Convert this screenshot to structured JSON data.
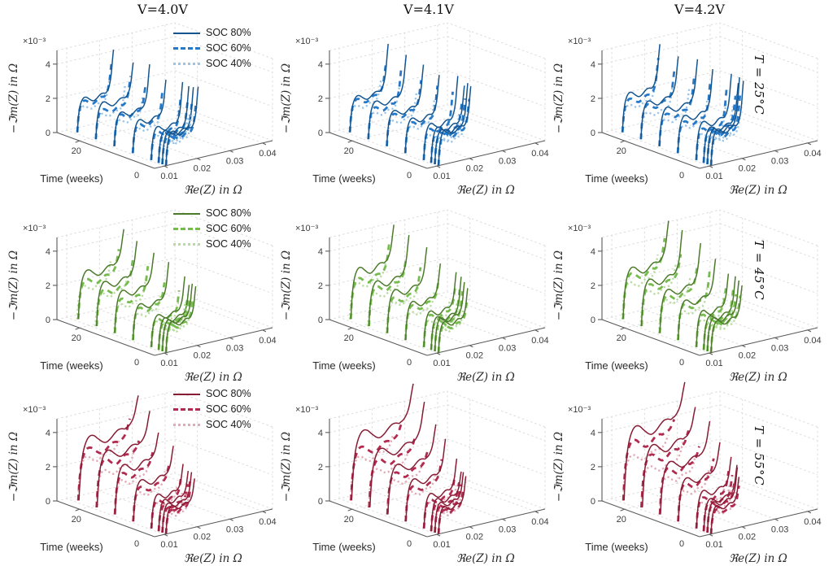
{
  "figure": {
    "background": "#ffffff"
  },
  "chart_data": {
    "type": "line",
    "subtype": "3d_nyquist_spectra_grid",
    "description": "3x3 grid of 3D electrochemical impedance spectra (Nyquist curves) versus aging time. Columns = storage voltage, rows = temperature, three SOC levels per panel.",
    "columns": [
      {
        "title": "V=4.0V",
        "show_legend": true,
        "h_scale": 1.0,
        "w_scale": 1.0
      },
      {
        "title": "V=4.1V",
        "show_legend": false,
        "h_scale": 1.04,
        "w_scale": 1.02
      },
      {
        "title": "V=4.2V",
        "show_legend": false,
        "h_scale": 1.09,
        "w_scale": 1.05
      }
    ],
    "rows": [
      {
        "temp_label": "T = 25°C",
        "colors": {
          "solid": "#14558F",
          "dash": "#2679C8",
          "dot": "#9AC4E8"
        },
        "weeks": [
          0,
          1,
          2,
          4,
          9,
          14,
          19,
          24
        ],
        "series": [
          {
            "label": "SOC 80%",
            "style": "solid",
            "R0": 0.0105,
            "R0k": 2e-05,
            "W0": 0.0095,
            "Wk": 8e-05,
            "h0": 0.00185,
            "hk": 6e-06,
            "tail0": 0.004,
            "tailk": 1e-05
          },
          {
            "label": "SOC 60%",
            "style": "dash",
            "R0": 0.0105,
            "R0k": 2e-05,
            "W0": 0.0088,
            "Wk": 7e-05,
            "h0": 0.00163,
            "hk": 5e-06,
            "tail0": 0.0032,
            "tailk": 1e-05
          },
          {
            "label": "SOC 40%",
            "style": "dot",
            "R0": 0.0104,
            "R0k": 2e-05,
            "W0": 0.0082,
            "Wk": 6e-05,
            "h0": 0.00133,
            "hk": 4e-06,
            "tail0": 0.0025,
            "tailk": 1e-05
          }
        ]
      },
      {
        "temp_label": "T = 45°C",
        "colors": {
          "solid": "#4C7A2B",
          "dash": "#76BB4E",
          "dot": "#B8DCA0"
        },
        "weeks": [
          0,
          1,
          2,
          4,
          9,
          14,
          19,
          24
        ],
        "series": [
          {
            "label": "SOC 80%",
            "style": "solid",
            "R0": 0.0105,
            "R0k": 3e-05,
            "W0": 0.009,
            "Wk": 0.00018,
            "h0": 0.0017,
            "hk": 4e-05,
            "tail0": 0.0034,
            "tailk": 6e-05
          },
          {
            "label": "SOC 60%",
            "style": "dash",
            "R0": 0.0105,
            "R0k": 3e-05,
            "W0": 0.0083,
            "Wk": 0.00015,
            "h0": 0.0015,
            "hk": 3.3e-05,
            "tail0": 0.0028,
            "tailk": 4e-05
          },
          {
            "label": "SOC 40%",
            "style": "dot",
            "R0": 0.0104,
            "R0k": 2e-05,
            "W0": 0.0077,
            "Wk": 0.00012,
            "h0": 0.00125,
            "hk": 2.7e-05,
            "tail0": 0.0022,
            "tailk": 3e-05
          }
        ]
      },
      {
        "temp_label": "T = 55°C",
        "colors": {
          "solid": "#871C34",
          "dash": "#B12A4F",
          "dot": "#E2A9B6"
        },
        "weeks": [
          0,
          1,
          2,
          4,
          9,
          14,
          19,
          24
        ],
        "series": [
          {
            "label": "SOC 80%",
            "style": "solid",
            "R0": 0.0105,
            "R0k": 4e-05,
            "W0": 0.0085,
            "Wk": 0.00038,
            "h0": 0.0015,
            "hk": 9e-05,
            "tail0": 0.0029,
            "tailk": 0.00011
          },
          {
            "label": "SOC 60%",
            "style": "dash",
            "R0": 0.0105,
            "R0k": 3e-05,
            "W0": 0.0078,
            "Wk": 0.0003,
            "h0": 0.0013,
            "hk": 7e-05,
            "tail0": 0.0024,
            "tailk": 6e-05
          },
          {
            "label": "SOC 40%",
            "style": "dot",
            "R0": 0.0104,
            "R0k": 3e-05,
            "W0": 0.0072,
            "Wk": 0.00024,
            "h0": 0.00115,
            "hk": 5e-05,
            "tail0": 0.002,
            "tailk": 4.5e-05
          }
        ]
      }
    ],
    "axes": {
      "x_label": "ℜe(Z) in Ω",
      "x_ticks": [
        0.01,
        0.02,
        0.03,
        0.04
      ],
      "x_tick_labels": [
        "0.01",
        "0.02",
        "0.03",
        "0.04"
      ],
      "x_range": [
        0.007,
        0.043
      ],
      "y_label": "Time (weeks)",
      "y_ticks": [
        0,
        20
      ],
      "y_tick_labels": [
        "0",
        "20"
      ],
      "y_range": [
        0,
        26
      ],
      "z_label": "−ℑm(Z) in Ω",
      "z_ticks": [
        0,
        0.002,
        0.004
      ],
      "z_tick_labels": [
        "0",
        "2",
        "4"
      ],
      "z_range": [
        0,
        0.0048
      ],
      "z_exponent": "×10⁻³",
      "grid": true,
      "legend_position": "top-right-of-first-column-panels"
    },
    "shape_profile": [
      [
        0,
        0
      ],
      [
        0.012,
        0.22
      ],
      [
        0.035,
        0.52
      ],
      [
        0.07,
        0.76
      ],
      [
        0.12,
        0.92
      ],
      [
        0.18,
        1.0
      ],
      [
        0.25,
        0.995
      ],
      [
        0.32,
        0.93
      ],
      [
        0.4,
        0.86
      ],
      [
        0.46,
        0.84
      ],
      [
        0.53,
        0.88
      ],
      [
        0.6,
        0.95
      ],
      [
        0.66,
        0.995
      ],
      [
        0.72,
        1.0
      ],
      [
        0.77,
        0.985
      ],
      [
        0.8,
        1.0
      ],
      [
        0.84,
        1.09
      ],
      [
        0.88,
        1.28
      ],
      [
        0.915,
        1.55
      ],
      [
        0.945,
        1.95
      ],
      [
        0.97,
        2.45
      ],
      [
        1.0,
        3.0
      ]
    ]
  }
}
